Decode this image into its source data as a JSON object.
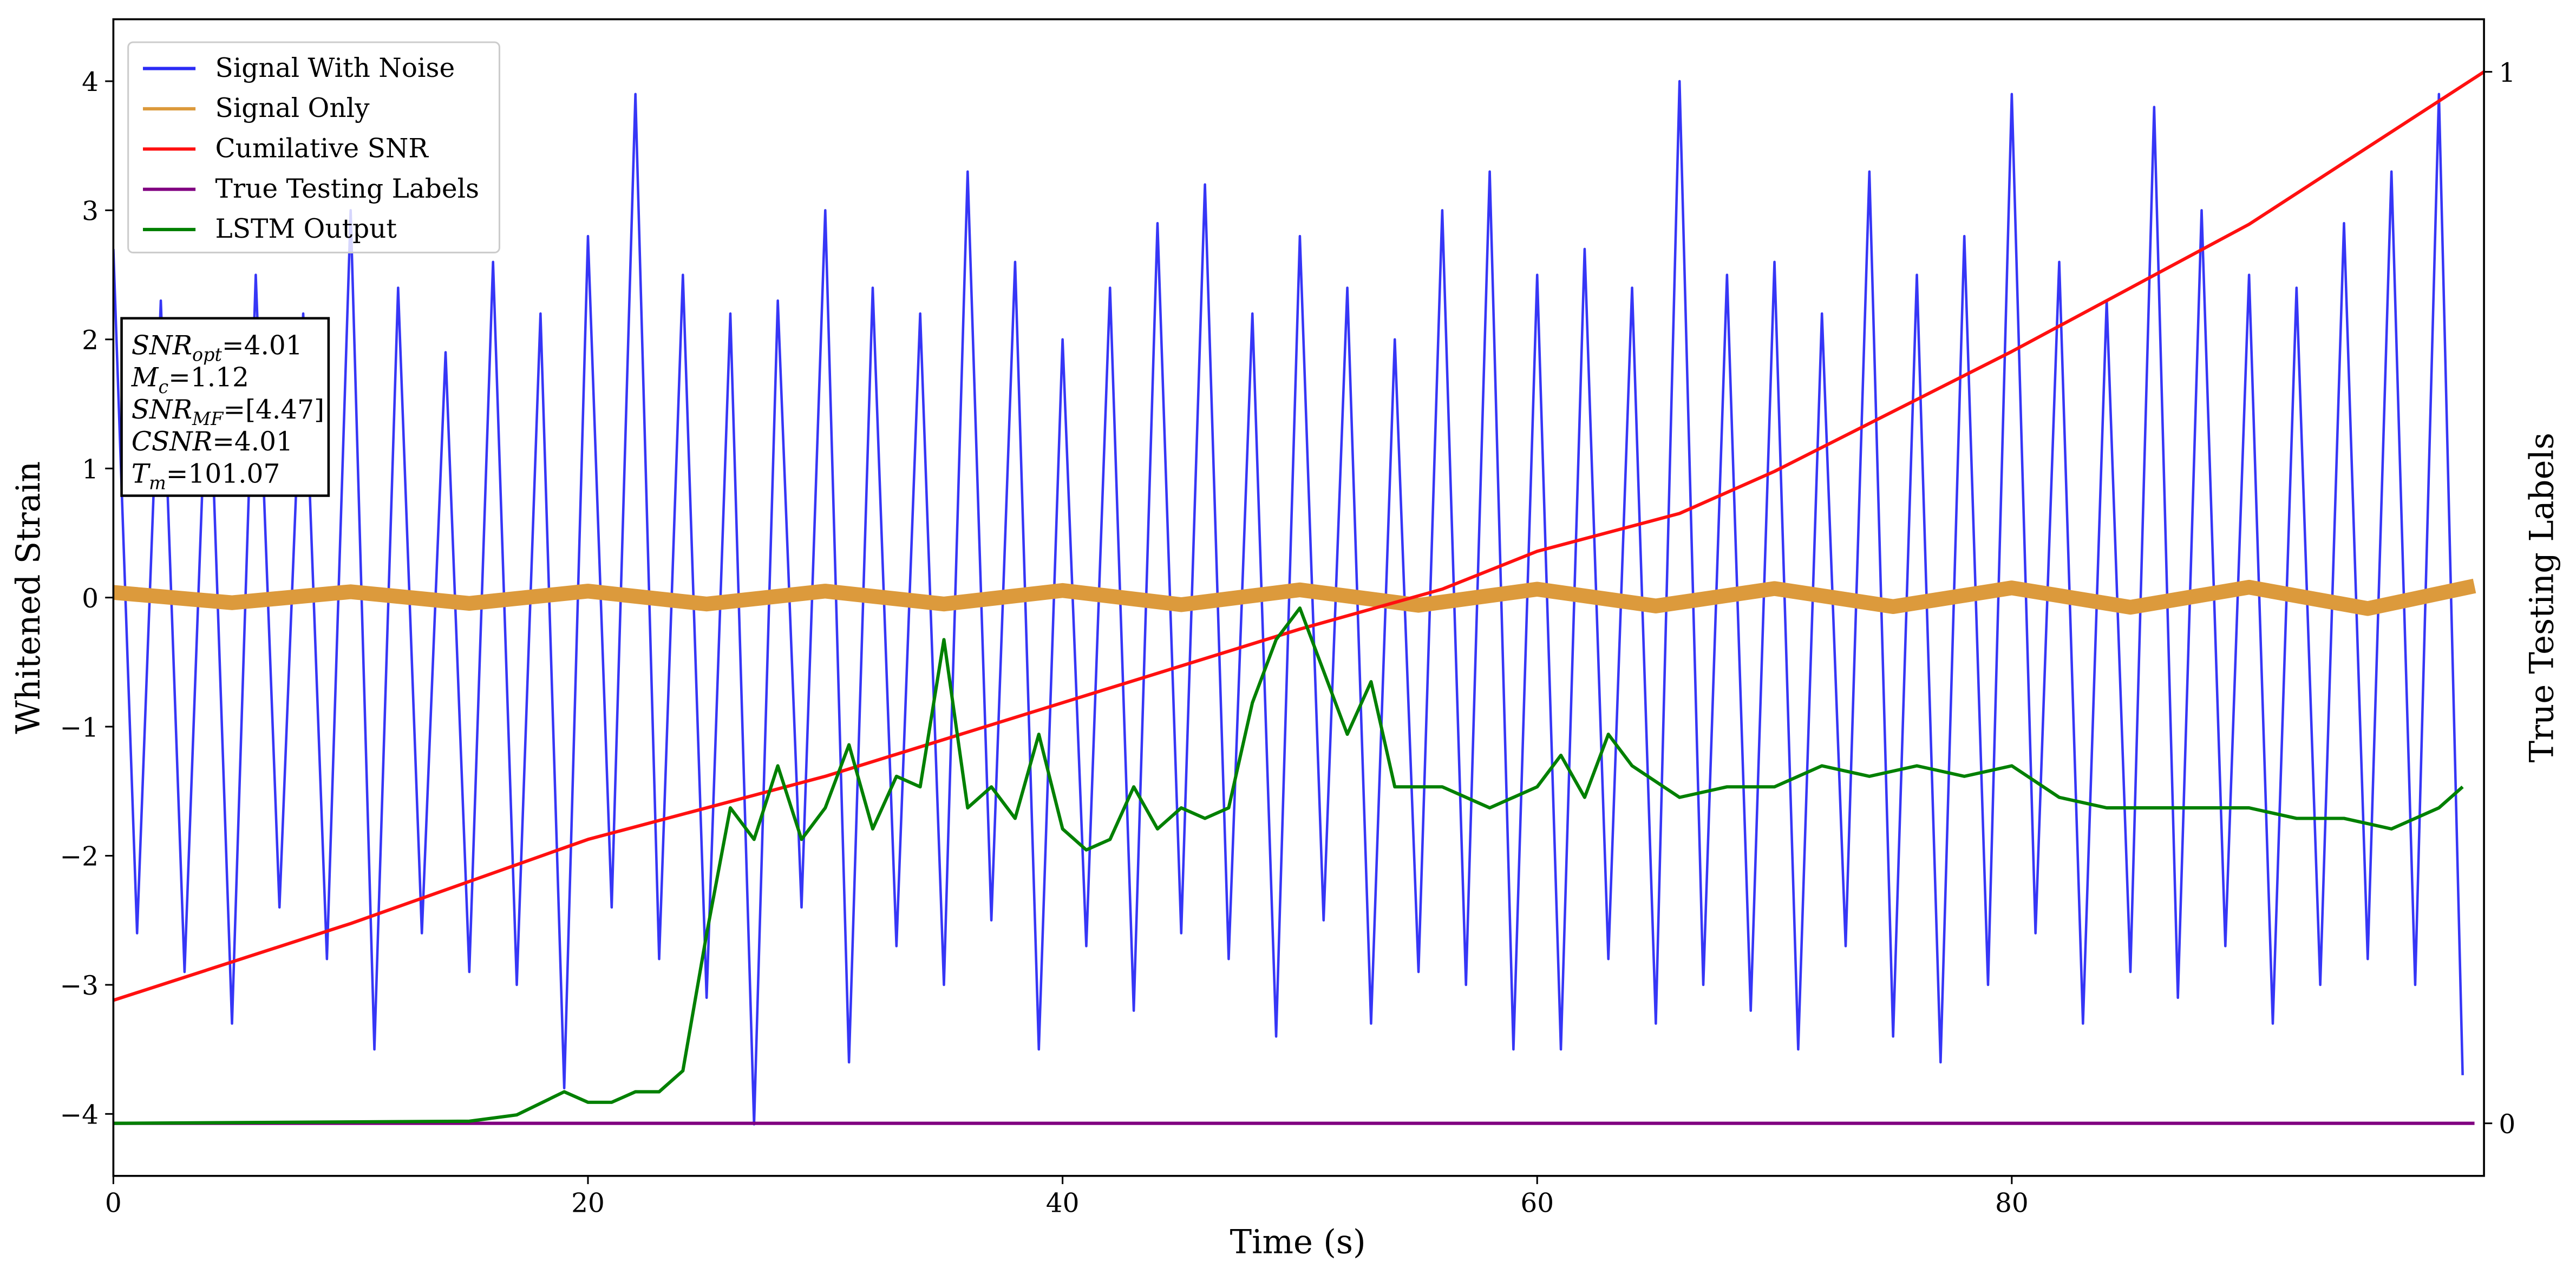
{
  "chart_data": {
    "type": "line",
    "xlabel": "Time (s)",
    "ylabel": "Whitened Strain",
    "y2label": "True Testing Labels",
    "xlim": [
      0,
      99.9
    ],
    "xticks": [
      0,
      20,
      40,
      60,
      80
    ],
    "ylim": [
      -4.48,
      4.48
    ],
    "yticks": [
      -4,
      -3,
      -2,
      -1,
      0,
      1,
      2,
      3,
      4
    ],
    "y2lim": [
      -0.05,
      1.05
    ],
    "y2ticks": [
      0,
      1
    ],
    "legend": "upper left",
    "series": [
      {
        "name": "Signal With Noise",
        "color": "#2b2bf5",
        "x": [
          0,
          1,
          2,
          3,
          4,
          5,
          6,
          7,
          8,
          9,
          10,
          11,
          12,
          13,
          14,
          15,
          16,
          17,
          18,
          19,
          20,
          21,
          22,
          23,
          24,
          25,
          26,
          27,
          28,
          29,
          30,
          31,
          32,
          33,
          34,
          35,
          36,
          37,
          38,
          39,
          40,
          41,
          42,
          43,
          44,
          45,
          46,
          47,
          48,
          49,
          50,
          51,
          52,
          53,
          54,
          55,
          56,
          57,
          58,
          59,
          60,
          61,
          62,
          63,
          64,
          65,
          66,
          67,
          68,
          69,
          70,
          71,
          72,
          73,
          74,
          75,
          76,
          77,
          78,
          79,
          80,
          81,
          82,
          83,
          84,
          85,
          86,
          87,
          88,
          89,
          90,
          91,
          92,
          93,
          94,
          95,
          96,
          97,
          98,
          99
        ],
        "values": [
          2.7,
          -2.6,
          2.3,
          -2.9,
          2.1,
          -3.3,
          2.5,
          -2.4,
          2.2,
          -2.8,
          3.0,
          -3.5,
          2.4,
          -2.6,
          1.9,
          -2.9,
          2.6,
          -3.0,
          2.2,
          -3.8,
          2.8,
          -2.4,
          3.9,
          -2.8,
          2.5,
          -3.1,
          2.2,
          -4.08,
          2.3,
          -2.4,
          3.0,
          -3.6,
          2.4,
          -2.7,
          2.2,
          -3.0,
          3.3,
          -2.5,
          2.6,
          -3.5,
          2.0,
          -2.7,
          2.4,
          -3.2,
          2.9,
          -2.6,
          3.2,
          -2.8,
          2.2,
          -3.4,
          2.8,
          -2.5,
          2.4,
          -3.3,
          2.0,
          -2.9,
          3.0,
          -3.0,
          3.3,
          -3.5,
          2.5,
          -3.5,
          2.7,
          -2.8,
          2.4,
          -3.3,
          4.0,
          -3.0,
          2.5,
          -3.2,
          2.6,
          -3.5,
          2.2,
          -2.7,
          3.3,
          -3.4,
          2.5,
          -3.6,
          2.8,
          -3.0,
          3.9,
          -2.6,
          2.6,
          -3.3,
          2.3,
          -2.9,
          3.8,
          -3.1,
          3.0,
          -2.7,
          2.5,
          -3.3,
          2.4,
          -3.0,
          2.9,
          -2.8,
          3.3,
          -3.0,
          3.9,
          -3.7
        ]
      },
      {
        "name": "Signal Only",
        "color": "#dc9a3c",
        "x": [
          0,
          5,
          10,
          15,
          20,
          25,
          30,
          35,
          40,
          45,
          50,
          55,
          60,
          65,
          70,
          75,
          80,
          85,
          90,
          95,
          99.5
        ],
        "values": [
          0.04,
          -0.04,
          0.045,
          -0.045,
          0.05,
          -0.05,
          0.05,
          -0.05,
          0.055,
          -0.055,
          0.06,
          -0.06,
          0.065,
          -0.065,
          0.07,
          -0.07,
          0.075,
          -0.075,
          0.08,
          -0.085,
          0.09
        ]
      },
      {
        "name": "Cumilative SNR",
        "color": "#ff1010",
        "axis": "y2",
        "x": [
          0,
          10,
          20,
          30,
          40,
          50,
          56,
          60,
          66,
          70,
          80,
          90,
          99.9
        ],
        "values": [
          0.117,
          0.19,
          0.27,
          0.33,
          0.4,
          0.47,
          0.508,
          0.544,
          0.58,
          0.62,
          0.734,
          0.855,
          1.0
        ]
      },
      {
        "name": "True Testing Labels",
        "color": "#800080",
        "axis": "y2",
        "x": [
          0,
          99.5
        ],
        "values": [
          0,
          0
        ]
      },
      {
        "name": "LSTM Output",
        "color": "#008000",
        "axis": "y2",
        "x": [
          0,
          15,
          17,
          19,
          20,
          21,
          22,
          23,
          24,
          25,
          26,
          27,
          28,
          29,
          30,
          31,
          32,
          33,
          34,
          35,
          36,
          37,
          38,
          39,
          40,
          41,
          42,
          43,
          44,
          45,
          46,
          47,
          48,
          49,
          50,
          51,
          52,
          53,
          54,
          56,
          58,
          60,
          61,
          62,
          63,
          64,
          66,
          68,
          70,
          72,
          74,
          76,
          78,
          80,
          82,
          84,
          86,
          88,
          90,
          92,
          94,
          96,
          98,
          99
        ],
        "values": [
          0,
          0.002,
          0.008,
          0.03,
          0.02,
          0.02,
          0.03,
          0.03,
          0.05,
          0.18,
          0.3,
          0.27,
          0.34,
          0.27,
          0.3,
          0.36,
          0.28,
          0.33,
          0.32,
          0.46,
          0.3,
          0.32,
          0.29,
          0.37,
          0.28,
          0.26,
          0.27,
          0.32,
          0.28,
          0.3,
          0.29,
          0.3,
          0.4,
          0.46,
          0.49,
          0.43,
          0.37,
          0.42,
          0.32,
          0.32,
          0.3,
          0.32,
          0.35,
          0.31,
          0.37,
          0.34,
          0.31,
          0.32,
          0.32,
          0.34,
          0.33,
          0.34,
          0.33,
          0.34,
          0.31,
          0.3,
          0.3,
          0.3,
          0.3,
          0.29,
          0.29,
          0.28,
          0.3,
          0.32
        ]
      }
    ],
    "annotations": [
      {
        "text": "SNR",
        "sub": "opt",
        "rest": "=4.01"
      },
      {
        "text": "M",
        "sub": "c",
        "rest": "=1.12"
      },
      {
        "text": "SNR",
        "sub": "MF",
        "rest": "=[4.47]"
      },
      {
        "text": "CSNR",
        "rest": "=4.01"
      },
      {
        "text": "T",
        "sub": "m",
        "rest": "=101.07"
      }
    ]
  }
}
